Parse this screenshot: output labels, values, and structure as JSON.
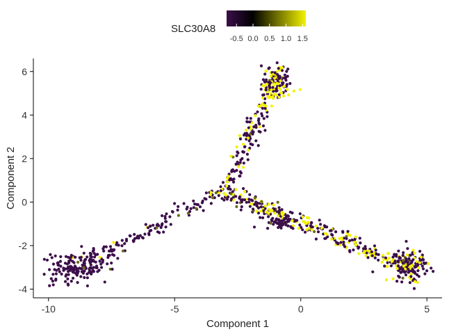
{
  "chart_data": {
    "type": "scatter",
    "title": "",
    "xlabel": "Component 1",
    "ylabel": "Component 2",
    "xlim": [
      -10.6,
      5.6
    ],
    "ylim": [
      -4.4,
      6.6
    ],
    "x_ticks": [
      -10,
      -5,
      0,
      5
    ],
    "y_ticks": [
      -4,
      -2,
      0,
      2,
      4,
      6
    ],
    "grid": false,
    "legend": {
      "title": "SLC30A8",
      "placement": "top",
      "range": [
        -0.8,
        1.6
      ],
      "ticks": [
        -0.5,
        0.0,
        0.5,
        1.0,
        1.5
      ],
      "tick_labels": [
        "-0.5",
        "0.0",
        "0.5",
        "1.0",
        "1.5"
      ],
      "colormap": [
        "#3c0f4a",
        "#000000",
        "#f2f200"
      ]
    },
    "branches": [
      {
        "name": "left",
        "from": [
          -9.8,
          -3.6
        ],
        "to": [
          -2.9,
          0.6
        ],
        "points": 170,
        "high_fraction": 0.05
      },
      {
        "name": "upper",
        "from": [
          -2.9,
          0.6
        ],
        "to": [
          -1.0,
          5.9
        ],
        "points": 160,
        "high_fraction": 0.25
      },
      {
        "name": "right",
        "from": [
          -2.9,
          0.4
        ],
        "to": [
          4.5,
          -3.1
        ],
        "points": 330,
        "high_fraction": 0.35
      }
    ],
    "clusters": [
      {
        "name": "lower-left-cluster",
        "center": [
          -8.8,
          -2.9
        ],
        "spread": [
          0.6,
          0.35
        ],
        "points": 120,
        "high_fraction": 0.03
      },
      {
        "name": "top-cluster",
        "center": [
          -0.9,
          5.5
        ],
        "spread": [
          0.3,
          0.45
        ],
        "points": 110,
        "high_fraction": 0.35
      },
      {
        "name": "small-middle-cluster",
        "center": [
          -0.8,
          -0.9
        ],
        "spread": [
          0.3,
          0.15
        ],
        "points": 45,
        "high_fraction": 0.0
      },
      {
        "name": "lower-right-cluster",
        "center": [
          4.3,
          -2.9
        ],
        "spread": [
          0.35,
          0.35
        ],
        "points": 140,
        "high_fraction": 0.3
      }
    ]
  }
}
